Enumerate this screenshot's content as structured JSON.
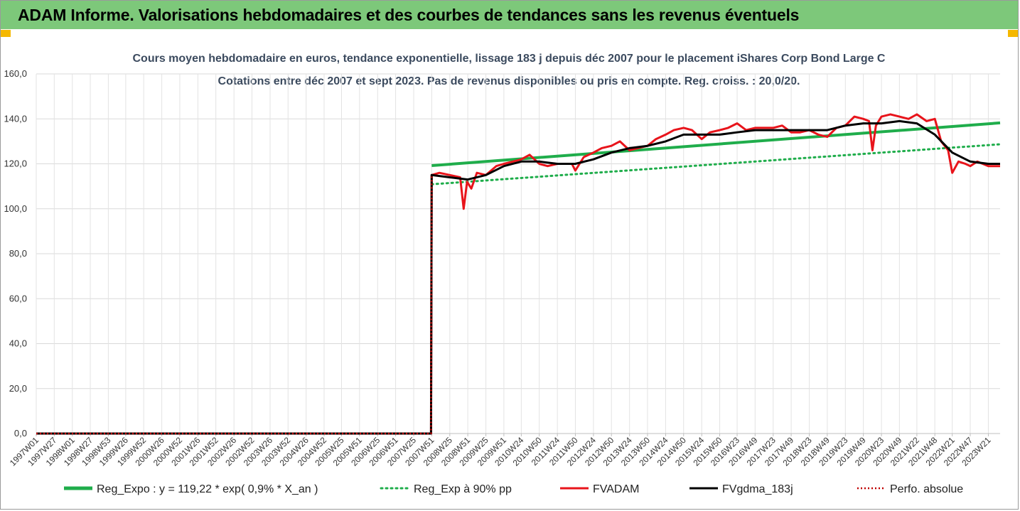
{
  "header": {
    "title": "ADAM Informe. Valorisations hebdomadaires et des courbes de tendances sans les revenus éventuels"
  },
  "colors": {
    "banner": "#7dc87a",
    "corner_accent": "#f5b800",
    "reg_expo": "#1fad4b",
    "reg_exp_90": "#1fad4b",
    "fvadam": "#e8141b",
    "fvgdma": "#000000",
    "perfo_absolue": "#c00000",
    "title_text": "#3b4a5e"
  },
  "chart_data": {
    "type": "line",
    "title": "Cours moyen hebdomadaire en euros, tendance exponentielle, lissage 183 j depuis déc 2007 pour le placement iShares Corp Bond Large C",
    "subtitle": "Cotations entre déc 2007 et sept 2023. Pas de revenus disponibles ou pris en compte. Reg. croiss. : 20,0/20.",
    "xlabel": "",
    "ylabel": "",
    "ylim": [
      0,
      160
    ],
    "yticks": [
      "0,0",
      "20,0",
      "40,0",
      "60,0",
      "80,0",
      "100,0",
      "120,0",
      "140,0",
      "160,0"
    ],
    "x_ticks": [
      "1997W01",
      "1997W27",
      "1998W01",
      "1998W27",
      "1998W53",
      "1999W26",
      "1999W52",
      "2000W26",
      "2000W52",
      "2001W26",
      "2001W52",
      "2002W26",
      "2002W52",
      "2003W26",
      "2003W52",
      "2004W26",
      "2004W52",
      "2005W25",
      "2005W51",
      "2006W25",
      "2006W51",
      "2007W25",
      "2007W51",
      "2008W25",
      "2008W51",
      "2009W25",
      "2009W51",
      "2010W24",
      "2010W50",
      "2011W24",
      "2011W50",
      "2012W24",
      "2012W50",
      "2013W24",
      "2013W50",
      "2014W24",
      "2014W50",
      "2015W24",
      "2015W50",
      "2016W23",
      "2016W49",
      "2017W23",
      "2017W49",
      "2018W23",
      "2018W49",
      "2019W23",
      "2019W49",
      "2020W23",
      "2020W49",
      "2021W22",
      "2021W48",
      "2022W21",
      "2022W47",
      "2023W21"
    ],
    "x_range": [
      "1997W01",
      "2023W38"
    ],
    "grid": true,
    "legend_position": "bottom",
    "series": [
      {
        "name": "Reg_Expo : y = 119,22  * exp( 0,9% *  X_an )",
        "style": "solid-thick",
        "x": [
          "2007W51",
          "2023W38"
        ],
        "values": [
          119.2,
          138.2
        ]
      },
      {
        "name": "Reg_Exp à 90% pp",
        "style": "dotted",
        "x": [
          "2007W51",
          "2023W38"
        ],
        "values": [
          110.9,
          128.7
        ]
      },
      {
        "name": "FVADAM",
        "style": "solid",
        "x": [
          "1997W01",
          "2007W50",
          "2007W51",
          "2008W10",
          "2008W25",
          "2008W40",
          "2008W45",
          "2008W50",
          "2009W04",
          "2009W12",
          "2009W25",
          "2009W40",
          "2009W51",
          "2010W12",
          "2010W24",
          "2010W36",
          "2010W50",
          "2011W10",
          "2011W24",
          "2011W36",
          "2011W45",
          "2011W50",
          "2012W10",
          "2012W24",
          "2012W36",
          "2012W50",
          "2013W10",
          "2013W24",
          "2013W36",
          "2013W50",
          "2014W10",
          "2014W24",
          "2014W36",
          "2014W50",
          "2015W10",
          "2015W24",
          "2015W36",
          "2015W50",
          "2016W10",
          "2016W23",
          "2016W36",
          "2016W49",
          "2017W10",
          "2017W23",
          "2017W36",
          "2017W49",
          "2018W10",
          "2018W23",
          "2018W36",
          "2018W49",
          "2019W10",
          "2019W23",
          "2019W36",
          "2019W49",
          "2020W05",
          "2020W10",
          "2020W15",
          "2020W23",
          "2020W36",
          "2020W49",
          "2021W10",
          "2021W22",
          "2021W36",
          "2021W48",
          "2022W05",
          "2022W15",
          "2022W21",
          "2022W30",
          "2022W40",
          "2022W47",
          "2023W05",
          "2023W21",
          "2023W38"
        ],
        "values": [
          0,
          0,
          115.0,
          116.0,
          115.0,
          114.0,
          100.0,
          112.0,
          109.0,
          116.0,
          115.0,
          119.0,
          120.0,
          121.0,
          122.0,
          124.0,
          120.0,
          119.0,
          120.0,
          120.0,
          120.0,
          117.0,
          123.0,
          125.0,
          127.0,
          128.0,
          130.0,
          126.0,
          127.0,
          128.0,
          131.0,
          133.0,
          135.0,
          136.0,
          135.0,
          131.0,
          134.0,
          135.0,
          136.0,
          138.0,
          135.0,
          136.0,
          136.0,
          136.0,
          137.0,
          134.0,
          134.0,
          135.0,
          133.0,
          132.0,
          136.0,
          137.0,
          141.0,
          140.0,
          139.0,
          126.0,
          137.0,
          141.0,
          142.0,
          141.0,
          140.0,
          142.0,
          139.0,
          140.0,
          130.0,
          126.0,
          116.0,
          121.0,
          120.0,
          119.0,
          121.0,
          119.0,
          119.0
        ]
      },
      {
        "name": "FVgdma_183j",
        "style": "solid",
        "x": [
          "1997W01",
          "2007W50",
          "2007W51",
          "2008W25",
          "2008W51",
          "2009W25",
          "2009W51",
          "2010W24",
          "2010W50",
          "2011W24",
          "2011W50",
          "2012W24",
          "2012W50",
          "2013W24",
          "2013W50",
          "2014W24",
          "2014W50",
          "2015W24",
          "2015W50",
          "2016W23",
          "2016W49",
          "2017W23",
          "2017W49",
          "2018W23",
          "2018W49",
          "2019W23",
          "2019W49",
          "2020W23",
          "2020W49",
          "2021W22",
          "2021W48",
          "2022W21",
          "2022W47",
          "2023W21",
          "2023W38"
        ],
        "values": [
          0,
          0,
          115.0,
          114.0,
          113.0,
          115.0,
          119.0,
          121.0,
          121.0,
          120.0,
          120.0,
          122.0,
          125.0,
          127.0,
          128.0,
          130.0,
          133.0,
          133.0,
          133.0,
          134.0,
          135.0,
          135.0,
          135.0,
          135.0,
          135.0,
          137.0,
          138.0,
          138.0,
          139.0,
          138.0,
          133.0,
          125.0,
          121.0,
          120.0,
          120.0
        ]
      },
      {
        "name": "Perfo. absolue",
        "style": "dotted",
        "x": [
          "1997W01",
          "2007W50",
          "2007W51",
          "2007W52"
        ],
        "values": [
          0,
          0,
          115.0,
          115.0
        ]
      }
    ]
  }
}
